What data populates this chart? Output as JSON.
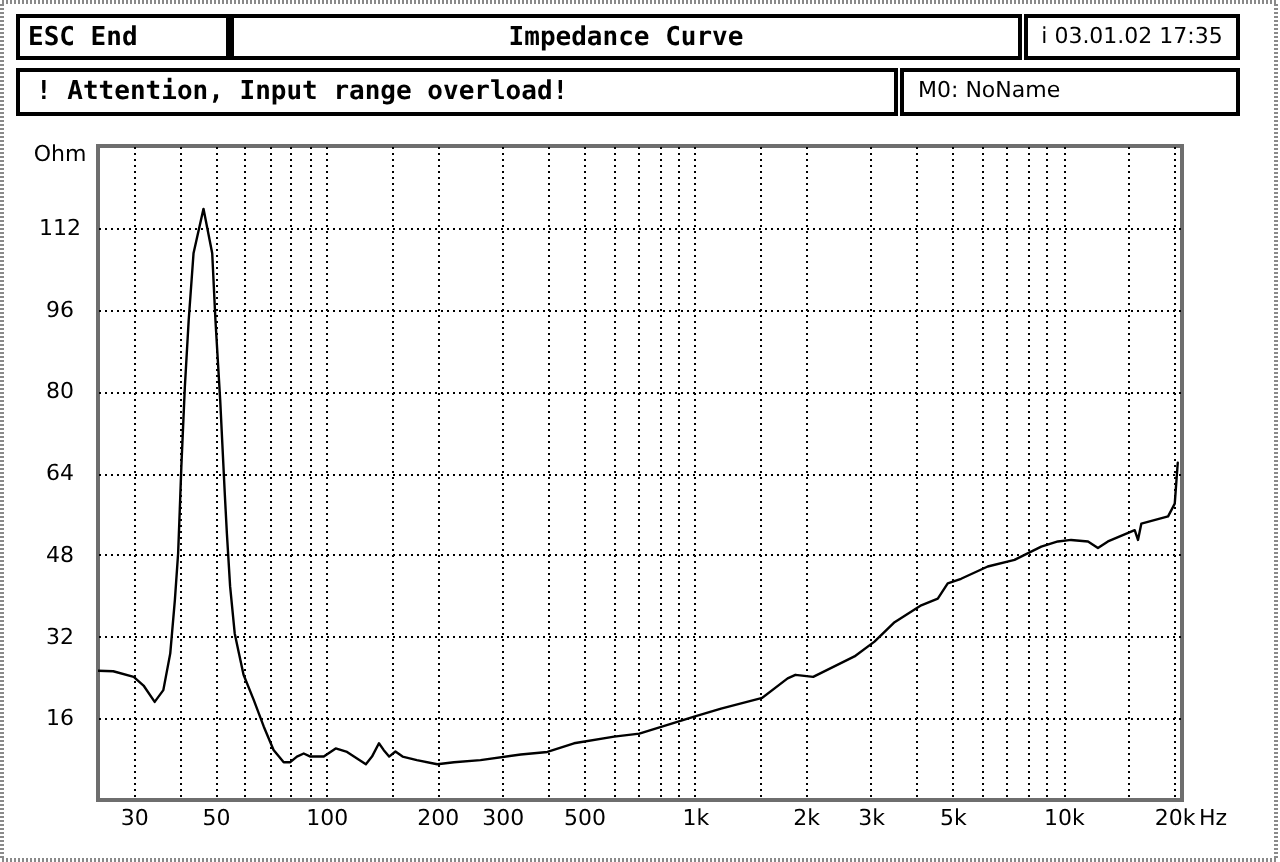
{
  "chart_data": {
    "type": "line",
    "title": "Impedance Curve",
    "xlabel": "Hz",
    "ylabel": "Ohm",
    "annotations": [
      "ESC End",
      "i 03.01.02 17:35",
      "! Attention, Input range overload!",
      "M0: NoName"
    ],
    "x": [
      24,
      26.4,
      30.0,
      31.9,
      34.2,
      36.1,
      37.7,
      38.8,
      39.6,
      40.1,
      40.4,
      41.3,
      42.3,
      43.6,
      46.4,
      49.0,
      50.0,
      51.5,
      53.0,
      53.7,
      54.8,
      56.4,
      57.9,
      59.6,
      63.5,
      67.6,
      71.9,
      76.6,
      79.8,
      83.2,
      86.8,
      90.5,
      98.4,
      106,
      113.8,
      128,
      133,
      138.9,
      143,
      148,
      154,
      161,
      176,
      200,
      222,
      262,
      337,
      398,
      470,
      604,
      707,
      996,
      1178,
      1524,
      1786,
      1875,
      2095,
      2712,
      3073,
      3485,
      4116,
      4565,
      4857,
      5280,
      6237,
      7374,
      8714,
      9667,
      10500,
      11672,
      12418,
      13220,
      15627,
      15950,
      16290,
      19250,
      20070,
      20450
    ],
    "values": [
      25.3,
      25.2,
      24.1,
      22.4,
      19.2,
      21.5,
      28.7,
      39.1,
      48.3,
      58.7,
      65.2,
      80.9,
      93.9,
      107,
      115.7,
      107,
      93.9,
      78.3,
      60,
      52.2,
      41.8,
      32.6,
      28.7,
      24.5,
      19.6,
      14.4,
      9.8,
      7.4,
      7.4,
      8.5,
      9.1,
      8.5,
      8.5,
      10.1,
      9.4,
      7.0,
      8.5,
      11.1,
      9.8,
      8.5,
      9.5,
      8.5,
      7.8,
      7.0,
      7.4,
      7.8,
      8.9,
      9.4,
      11.1,
      12.4,
      13.0,
      16.3,
      17.9,
      20.0,
      23.8,
      24.5,
      24.1,
      28.1,
      31.0,
      34.8,
      38.1,
      39.4,
      42.4,
      43.3,
      45.7,
      47.0,
      49.6,
      50.6,
      50.9,
      50.6,
      49.3,
      50.6,
      52.8,
      50.9,
      54.1,
      55.5,
      58.0,
      66.0
    ],
    "color": "#000000",
    "xlim": [
      24,
      21000
    ],
    "ylim": [
      0,
      128
    ],
    "xticks": [
      30,
      {
        "value": 40,
        "label": null
      },
      50,
      {
        "value": 60,
        "label": null
      },
      {
        "value": 70,
        "label": null
      },
      {
        "value": 80,
        "label": null
      },
      {
        "value": 90,
        "label": null
      },
      100,
      {
        "value": 150,
        "label": null
      },
      200,
      300,
      {
        "value": 400,
        "label": null
      },
      500,
      {
        "value": 600,
        "label": null
      },
      {
        "value": 700,
        "label": null
      },
      {
        "value": 800,
        "label": null
      },
      {
        "value": 900,
        "label": null
      },
      {
        "value": 1000,
        "label": "1k"
      },
      {
        "value": 1500,
        "label": null
      },
      {
        "value": 2000,
        "label": "2k"
      },
      {
        "value": 3000,
        "label": "3k"
      },
      {
        "value": 4000,
        "label": null
      },
      {
        "value": 5000,
        "label": "5k"
      },
      {
        "value": 6000,
        "label": null
      },
      {
        "value": 7000,
        "label": null
      },
      {
        "value": 8000,
        "label": null
      },
      {
        "value": 9000,
        "label": null
      },
      {
        "value": 10000,
        "label": "10k"
      },
      {
        "value": 15000,
        "label": null
      },
      {
        "value": 20000,
        "label": "20k"
      }
    ],
    "yticks": [
      16,
      32,
      48,
      64,
      80,
      96,
      112
    ],
    "log": "x",
    "grid": true
  }
}
